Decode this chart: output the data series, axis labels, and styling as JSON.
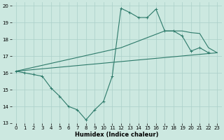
{
  "xlabel": "Humidex (Indice chaleur)",
  "xlim": [
    -0.5,
    23.5
  ],
  "ylim": [
    13,
    20.2
  ],
  "yticks": [
    13,
    14,
    15,
    16,
    17,
    18,
    19,
    20
  ],
  "xticks": [
    0,
    1,
    2,
    3,
    4,
    5,
    6,
    7,
    8,
    9,
    10,
    11,
    12,
    13,
    14,
    15,
    16,
    17,
    18,
    19,
    20,
    21,
    22,
    23
  ],
  "bg_color": "#cce8e0",
  "grid_color": "#aacfc8",
  "line_color": "#2d7a6a",
  "line1_x": [
    0,
    1,
    2,
    3,
    4,
    5,
    6,
    7,
    8,
    9,
    10,
    11,
    12,
    13,
    14,
    15,
    16,
    17,
    18,
    19,
    20,
    21,
    22,
    23
  ],
  "line1_y": [
    16.1,
    16.0,
    15.9,
    15.8,
    15.1,
    14.6,
    14.0,
    13.8,
    13.2,
    13.8,
    14.3,
    15.8,
    19.85,
    19.6,
    19.3,
    19.3,
    19.8,
    18.5,
    18.5,
    18.2,
    17.3,
    17.5,
    17.2,
    null
  ],
  "line2_x": [
    0,
    23
  ],
  "line2_y": [
    16.1,
    17.2
  ],
  "line3_x": [
    0,
    12,
    17,
    19,
    20,
    21,
    22,
    23
  ],
  "line3_y": [
    16.1,
    17.5,
    18.5,
    18.5,
    18.4,
    18.35,
    17.5,
    17.2
  ]
}
